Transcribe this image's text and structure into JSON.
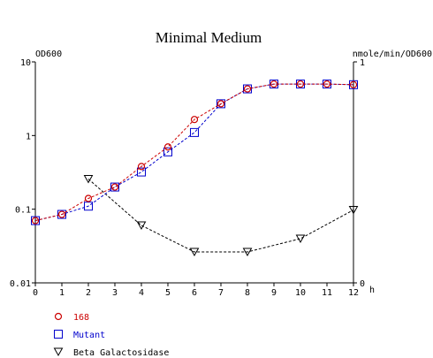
{
  "chart_data": {
    "type": "line",
    "title": "Minimal Medium",
    "x_unit": "h",
    "x": [
      0,
      1,
      2,
      3,
      4,
      5,
      6,
      7,
      8,
      9,
      10,
      11,
      12
    ],
    "x_ticks": [
      "0",
      "1",
      "2",
      "3",
      "4",
      "5",
      "6",
      "7",
      "8",
      "9",
      "10",
      "11",
      "12"
    ],
    "xlim": [
      0,
      12
    ],
    "left_axis": {
      "label": "OD600",
      "scale": "log",
      "ylim": [
        0.01,
        10
      ],
      "ticks": [
        10,
        1,
        0.1,
        0.01
      ],
      "tick_labels": [
        "10",
        "1",
        "0.1",
        "0.01"
      ]
    },
    "right_axis": {
      "label": "nmole/min/OD600",
      "scale": "linear",
      "ylim": [
        0,
        1
      ],
      "ticks": [
        1,
        0
      ],
      "tick_labels": [
        "1",
        "0"
      ]
    },
    "series": [
      {
        "name": "168",
        "axis": "left",
        "marker": "circle",
        "color": "#cc0000",
        "x": [
          0,
          1,
          2,
          3,
          4,
          5,
          6,
          7,
          8,
          9,
          10,
          11,
          12
        ],
        "y": [
          0.07,
          0.085,
          0.14,
          0.2,
          0.38,
          0.7,
          1.65,
          2.7,
          4.3,
          5.0,
          5.0,
          5.0,
          4.9
        ]
      },
      {
        "name": "Mutant",
        "axis": "left",
        "marker": "square",
        "color": "#0000cc",
        "x": [
          0,
          1,
          2,
          3,
          4,
          5,
          6,
          7,
          8,
          9,
          10,
          11,
          12
        ],
        "y": [
          0.07,
          0.085,
          0.11,
          0.2,
          0.32,
          0.6,
          1.1,
          2.7,
          4.3,
          5.0,
          5.0,
          5.0,
          4.9
        ]
      },
      {
        "name": "Beta Galactosidase",
        "axis": "right",
        "marker": "triangle-down",
        "color": "#000000",
        "x": [
          2,
          4,
          6,
          8,
          10,
          12
        ],
        "y": [
          0.47,
          0.26,
          0.14,
          0.14,
          0.2,
          0.33
        ]
      }
    ],
    "legend_placement": "bottom-left",
    "grid": false
  }
}
